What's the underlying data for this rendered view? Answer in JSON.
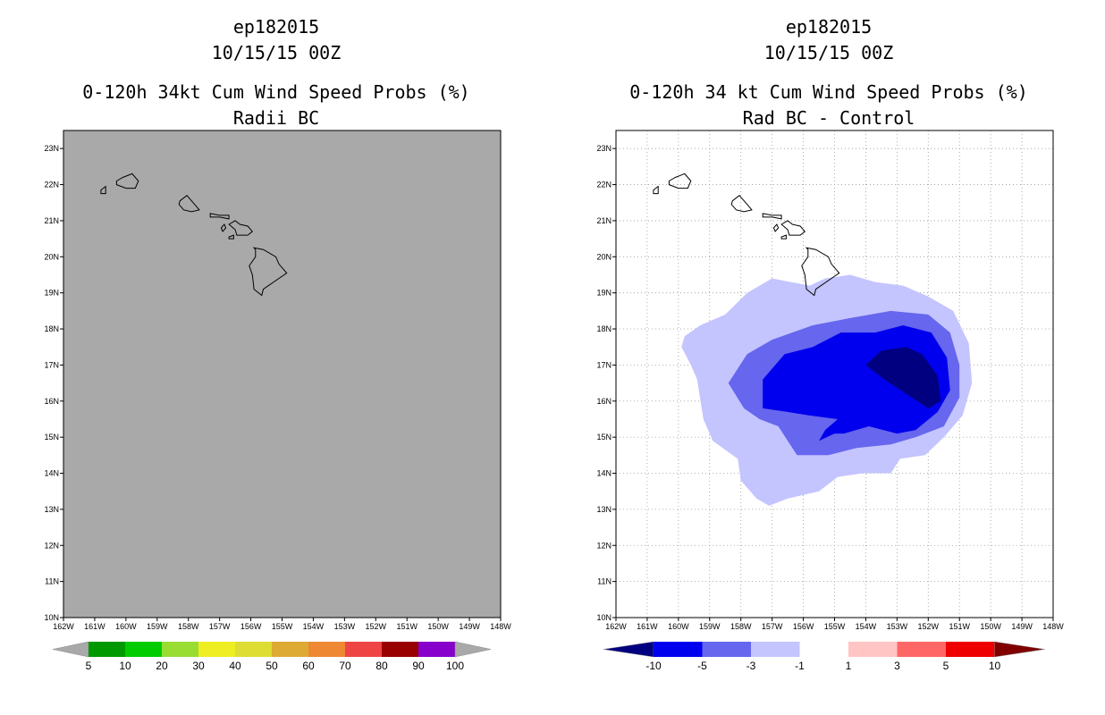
{
  "chart_data": [
    {
      "type": "heatmap",
      "storm_id": "ep182015",
      "date": "10/15/15 00Z",
      "title": "0-120h 34kt Cum Wind Speed Probs (%)",
      "subtitle": "Radii BC",
      "background_color": "#a9a9a9",
      "grid": false,
      "xlim": [
        -162,
        -148
      ],
      "ylim": [
        10,
        23.5
      ],
      "x_tick_labels": [
        "162W",
        "161W",
        "160W",
        "159W",
        "158W",
        "157W",
        "156W",
        "155W",
        "154W",
        "153W",
        "152W",
        "151W",
        "150W",
        "149W",
        "148W"
      ],
      "y_tick_labels": [
        "10N",
        "11N",
        "12N",
        "13N",
        "14N",
        "15N",
        "16N",
        "17N",
        "18N",
        "19N",
        "20N",
        "21N",
        "22N",
        "23N"
      ],
      "colorbar": {
        "labels": [
          "5",
          "10",
          "20",
          "30",
          "40",
          "50",
          "60",
          "70",
          "80",
          "90",
          "100"
        ],
        "colors": [
          "#009900",
          "#00cc00",
          "#99dd33",
          "#eeee22",
          "#dddd33",
          "#ddaa33",
          "#ee8833",
          "#ee4444",
          "#990000",
          "#8800cc"
        ],
        "end_colors": [
          "#a9a9a9",
          "#a9a9a9"
        ]
      },
      "contours": []
    },
    {
      "type": "heatmap",
      "storm_id": "ep182015",
      "date": "10/15/15 00Z",
      "title": "0-120h 34 kt Cum Wind Speed Probs (%)",
      "subtitle": "Rad BC - Control",
      "background_color": "#ffffff",
      "grid": true,
      "xlim": [
        -162,
        -148
      ],
      "ylim": [
        10,
        23.5
      ],
      "x_tick_labels": [
        "162W",
        "161W",
        "160W",
        "159W",
        "158W",
        "157W",
        "156W",
        "155W",
        "154W",
        "153W",
        "152W",
        "151W",
        "150W",
        "149W",
        "148W"
      ],
      "y_tick_labels": [
        "10N",
        "11N",
        "12N",
        "13N",
        "14N",
        "15N",
        "16N",
        "17N",
        "18N",
        "19N",
        "20N",
        "21N",
        "22N",
        "23N"
      ],
      "colorbar": {
        "labels": [
          "-10",
          "-5",
          "-3",
          "-1",
          "1",
          "3",
          "5",
          "10"
        ],
        "colors": [
          "#0000ee",
          "#6666ee",
          "#c4c4ff",
          "#ffffff",
          "#ffc4c4",
          "#ff6666",
          "#ee0000"
        ],
        "end_colors": [
          "#000080",
          "#800000"
        ]
      },
      "contours": [
        {
          "level": "-1 to -3",
          "color": "#c4c4ff",
          "points": [
            [
              -159.9,
              17.5
            ],
            [
              -159.8,
              17.8
            ],
            [
              -159.3,
              18.1
            ],
            [
              -158.5,
              18.4
            ],
            [
              -157.8,
              19.0
            ],
            [
              -157.0,
              19.4
            ],
            [
              -155.8,
              19.2
            ],
            [
              -155.3,
              19.4
            ],
            [
              -154.5,
              19.5
            ],
            [
              -153.7,
              19.3
            ],
            [
              -152.8,
              19.2
            ],
            [
              -152.0,
              18.9
            ],
            [
              -151.2,
              18.5
            ],
            [
              -150.7,
              17.6
            ],
            [
              -150.6,
              16.5
            ],
            [
              -150.9,
              15.6
            ],
            [
              -151.5,
              15.0
            ],
            [
              -152.1,
              14.5
            ],
            [
              -152.9,
              14.4
            ],
            [
              -153.2,
              14.0
            ],
            [
              -154.1,
              14.0
            ],
            [
              -154.9,
              13.9
            ],
            [
              -155.5,
              13.5
            ],
            [
              -156.5,
              13.3
            ],
            [
              -157.1,
              13.1
            ],
            [
              -157.5,
              13.3
            ],
            [
              -158.0,
              13.8
            ],
            [
              -158.1,
              14.4
            ],
            [
              -158.9,
              14.9
            ],
            [
              -159.2,
              15.5
            ],
            [
              -159.4,
              16.6
            ],
            [
              -159.6,
              17.0
            ]
          ]
        },
        {
          "level": "-3 to -5",
          "color": "#6666ee",
          "points": [
            [
              -158.4,
              16.5
            ],
            [
              -157.8,
              17.3
            ],
            [
              -157.0,
              17.7
            ],
            [
              -155.7,
              18.1
            ],
            [
              -154.5,
              18.3
            ],
            [
              -153.2,
              18.5
            ],
            [
              -152.0,
              18.4
            ],
            [
              -151.3,
              17.9
            ],
            [
              -151.0,
              17.0
            ],
            [
              -151.0,
              16.1
            ],
            [
              -151.5,
              15.3
            ],
            [
              -152.4,
              15.0
            ],
            [
              -153.2,
              14.8
            ],
            [
              -154.3,
              14.7
            ],
            [
              -155.2,
              14.5
            ],
            [
              -156.2,
              14.5
            ],
            [
              -156.5,
              14.9
            ],
            [
              -156.8,
              15.3
            ],
            [
              -157.4,
              15.5
            ],
            [
              -157.9,
              15.8
            ]
          ]
        },
        {
          "level": "-5 to -10",
          "color": "#0000ee",
          "points": [
            [
              -157.3,
              16.0
            ],
            [
              -157.3,
              16.6
            ],
            [
              -156.6,
              17.3
            ],
            [
              -155.7,
              17.5
            ],
            [
              -154.8,
              17.9
            ],
            [
              -153.7,
              17.9
            ],
            [
              -152.8,
              18.1
            ],
            [
              -151.9,
              17.9
            ],
            [
              -151.4,
              17.2
            ],
            [
              -151.3,
              16.3
            ],
            [
              -151.7,
              15.7
            ],
            [
              -152.4,
              15.2
            ],
            [
              -153.0,
              15.1
            ],
            [
              -153.9,
              15.3
            ],
            [
              -154.7,
              15.1
            ],
            [
              -155.0,
              15.1
            ],
            [
              -155.5,
              14.9
            ],
            [
              -155.3,
              15.2
            ],
            [
              -154.9,
              15.5
            ],
            [
              -155.8,
              15.6
            ],
            [
              -156.5,
              15.7
            ],
            [
              -157.3,
              15.8
            ]
          ]
        },
        {
          "level": "< -10",
          "color": "#000080",
          "points": [
            [
              -154.0,
              17.0
            ],
            [
              -153.5,
              17.4
            ],
            [
              -152.7,
              17.5
            ],
            [
              -152.2,
              17.3
            ],
            [
              -151.7,
              16.7
            ],
            [
              -151.6,
              16.0
            ],
            [
              -152.0,
              15.8
            ],
            [
              -152.7,
              16.2
            ],
            [
              -153.4,
              16.6
            ]
          ]
        }
      ]
    }
  ]
}
